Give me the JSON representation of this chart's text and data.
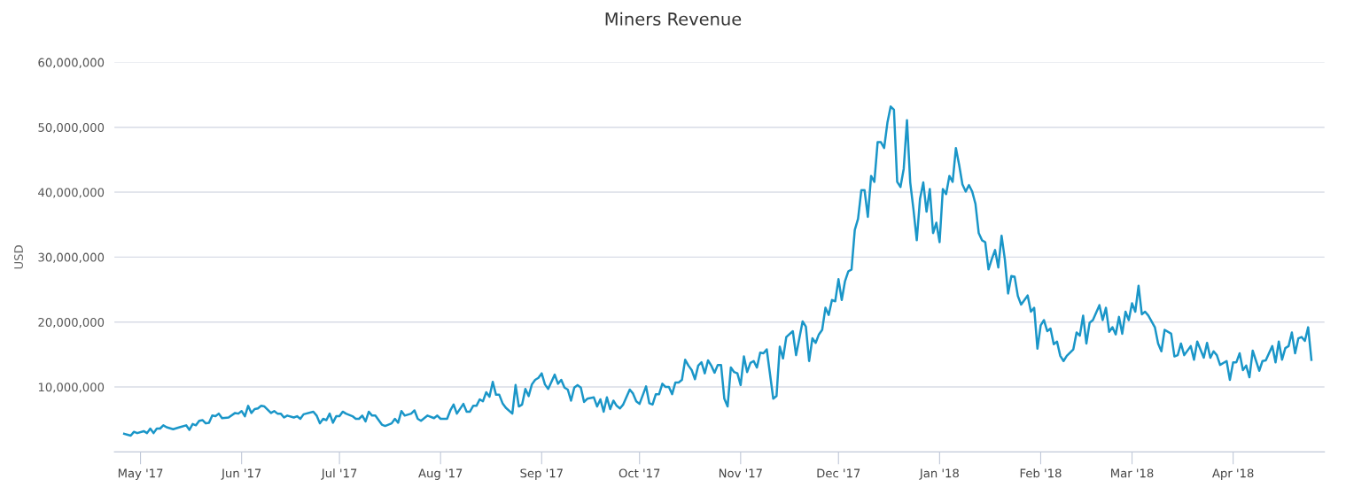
{
  "chart_data": {
    "type": "line",
    "title": "Miners Revenue",
    "ylabel": "USD",
    "xlim": [
      "2017-04-23",
      "2018-04-29"
    ],
    "xticks": [
      {
        "value": "2017-05-01",
        "label": "May '17"
      },
      {
        "value": "2017-06-01",
        "label": "Jun '17"
      },
      {
        "value": "2017-07-01",
        "label": "Jul '17"
      },
      {
        "value": "2017-08-01",
        "label": "Aug '17"
      },
      {
        "value": "2017-09-01",
        "label": "Sep '17"
      },
      {
        "value": "2017-10-01",
        "label": "Oct '17"
      },
      {
        "value": "2017-11-01",
        "label": "Nov '17"
      },
      {
        "value": "2017-12-01",
        "label": "Dec '17"
      },
      {
        "value": "2018-01-01",
        "label": "Jan '18"
      },
      {
        "value": "2018-02-01",
        "label": "Feb '18"
      },
      {
        "value": "2018-03-01",
        "label": "Mar '18"
      },
      {
        "value": "2018-04-01",
        "label": "Apr '18"
      }
    ],
    "ylim": [
      0,
      60000000
    ],
    "yticks": [
      {
        "value": 10000000,
        "label": "10,000,000"
      },
      {
        "value": 20000000,
        "label": "20,000,000"
      },
      {
        "value": 30000000,
        "label": "30,000,000"
      },
      {
        "value": 40000000,
        "label": "40,000,000"
      },
      {
        "value": 50000000,
        "label": "50,000,000"
      },
      {
        "value": 60000000,
        "label": "60,000,000"
      }
    ],
    "grid": "y",
    "marker": "none",
    "line_style": "solid",
    "series": [
      {
        "color": "#1a96c8",
        "x": [
          "2017-04-26",
          "2017-04-28",
          "2017-04-29",
          "2017-04-30",
          "2017-05-02",
          "2017-05-03",
          "2017-05-04",
          "2017-05-05",
          "2017-05-06",
          "2017-05-07",
          "2017-05-08",
          "2017-05-09",
          "2017-05-11",
          "2017-05-13",
          "2017-05-15",
          "2017-05-16",
          "2017-05-17",
          "2017-05-18",
          "2017-05-19",
          "2017-05-20",
          "2017-05-21",
          "2017-05-22",
          "2017-05-23",
          "2017-05-24",
          "2017-05-25",
          "2017-05-26",
          "2017-05-28",
          "2017-05-30",
          "2017-05-31",
          "2017-06-01",
          "2017-06-02",
          "2017-06-03",
          "2017-06-04",
          "2017-06-05",
          "2017-06-06",
          "2017-06-07",
          "2017-06-08",
          "2017-06-10",
          "2017-06-11",
          "2017-06-12",
          "2017-06-13",
          "2017-06-14",
          "2017-06-15",
          "2017-06-17",
          "2017-06-18",
          "2017-06-19",
          "2017-06-20",
          "2017-06-23",
          "2017-06-24",
          "2017-06-25",
          "2017-06-26",
          "2017-06-27",
          "2017-06-28",
          "2017-06-29",
          "2017-06-30",
          "2017-07-01",
          "2017-07-02",
          "2017-07-03",
          "2017-07-05",
          "2017-07-06",
          "2017-07-07",
          "2017-07-08",
          "2017-07-09",
          "2017-07-10",
          "2017-07-11",
          "2017-07-12",
          "2017-07-14",
          "2017-07-15",
          "2017-07-17",
          "2017-07-18",
          "2017-07-19",
          "2017-07-20",
          "2017-07-21",
          "2017-07-23",
          "2017-07-24",
          "2017-07-25",
          "2017-07-26",
          "2017-07-28",
          "2017-07-30",
          "2017-07-31",
          "2017-08-01",
          "2017-08-03",
          "2017-08-04",
          "2017-08-05",
          "2017-08-06",
          "2017-08-08",
          "2017-08-09",
          "2017-08-10",
          "2017-08-11",
          "2017-08-12",
          "2017-08-13",
          "2017-08-14",
          "2017-08-15",
          "2017-08-16",
          "2017-08-17",
          "2017-08-18",
          "2017-08-19",
          "2017-08-20",
          "2017-08-21",
          "2017-08-23",
          "2017-08-24",
          "2017-08-25",
          "2017-08-26",
          "2017-08-27",
          "2017-08-28",
          "2017-08-29",
          "2017-08-30",
          "2017-08-31",
          "2017-09-01",
          "2017-09-02",
          "2017-09-03",
          "2017-09-05",
          "2017-09-06",
          "2017-09-07",
          "2017-09-08",
          "2017-09-09",
          "2017-09-10",
          "2017-09-11",
          "2017-09-12",
          "2017-09-13",
          "2017-09-14",
          "2017-09-15",
          "2017-09-17",
          "2017-09-18",
          "2017-09-19",
          "2017-09-20",
          "2017-09-21",
          "2017-09-22",
          "2017-09-23",
          "2017-09-24",
          "2017-09-25",
          "2017-09-26",
          "2017-09-28",
          "2017-09-29",
          "2017-09-30",
          "2017-10-01",
          "2017-10-03",
          "2017-10-04",
          "2017-10-05",
          "2017-10-06",
          "2017-10-07",
          "2017-10-08",
          "2017-10-09",
          "2017-10-10",
          "2017-10-11",
          "2017-10-12",
          "2017-10-13",
          "2017-10-14",
          "2017-10-15",
          "2017-10-16",
          "2017-10-17",
          "2017-10-18",
          "2017-10-19",
          "2017-10-20",
          "2017-10-21",
          "2017-10-22",
          "2017-10-23",
          "2017-10-24",
          "2017-10-25",
          "2017-10-26",
          "2017-10-27",
          "2017-10-28",
          "2017-10-29",
          "2017-10-30",
          "2017-10-31",
          "2017-11-01",
          "2017-11-02",
          "2017-11-03",
          "2017-11-04",
          "2017-11-05",
          "2017-11-06",
          "2017-11-07",
          "2017-11-08",
          "2017-11-09",
          "2017-11-11",
          "2017-11-12",
          "2017-11-13",
          "2017-11-14",
          "2017-11-15",
          "2017-11-17",
          "2017-11-18",
          "2017-11-19",
          "2017-11-20",
          "2017-11-21",
          "2017-11-22",
          "2017-11-23",
          "2017-11-24",
          "2017-11-25",
          "2017-11-26",
          "2017-11-27",
          "2017-11-28",
          "2017-11-29",
          "2017-11-30",
          "2017-12-01",
          "2017-12-02",
          "2017-12-03",
          "2017-12-04",
          "2017-12-05",
          "2017-12-06",
          "2017-12-07",
          "2017-12-08",
          "2017-12-09",
          "2017-12-10",
          "2017-12-11",
          "2017-12-12",
          "2017-12-13",
          "2017-12-14",
          "2017-12-15",
          "2017-12-16",
          "2017-12-17",
          "2017-12-18",
          "2017-12-19",
          "2017-12-20",
          "2017-12-21",
          "2017-12-22",
          "2017-12-23",
          "2017-12-24",
          "2017-12-25",
          "2017-12-26",
          "2017-12-27",
          "2017-12-28",
          "2017-12-29",
          "2017-12-30",
          "2017-12-31",
          "2018-01-01",
          "2018-01-02",
          "2018-01-03",
          "2018-01-04",
          "2018-01-05",
          "2018-01-06",
          "2018-01-07",
          "2018-01-08",
          "2018-01-09",
          "2018-01-10",
          "2018-01-11",
          "2018-01-12",
          "2018-01-13",
          "2018-01-14",
          "2018-01-15",
          "2018-01-16",
          "2018-01-17",
          "2018-01-18",
          "2018-01-19",
          "2018-01-20",
          "2018-01-21",
          "2018-01-22",
          "2018-01-23",
          "2018-01-24",
          "2018-01-25",
          "2018-01-26",
          "2018-01-28",
          "2018-01-29",
          "2018-01-30",
          "2018-01-31",
          "2018-02-01",
          "2018-02-02",
          "2018-02-03",
          "2018-02-04",
          "2018-02-05",
          "2018-02-06",
          "2018-02-07",
          "2018-02-08",
          "2018-02-09",
          "2018-02-11",
          "2018-02-12",
          "2018-02-13",
          "2018-02-14",
          "2018-02-15",
          "2018-02-16",
          "2018-02-17",
          "2018-02-19",
          "2018-02-20",
          "2018-02-21",
          "2018-02-22",
          "2018-02-23",
          "2018-02-24",
          "2018-02-25",
          "2018-02-26",
          "2018-02-27",
          "2018-02-28",
          "2018-03-01",
          "2018-03-02",
          "2018-03-03",
          "2018-03-04",
          "2018-03-05",
          "2018-03-06",
          "2018-03-08",
          "2018-03-09",
          "2018-03-10",
          "2018-03-11",
          "2018-03-13",
          "2018-03-14",
          "2018-03-15",
          "2018-03-16",
          "2018-03-17",
          "2018-03-19",
          "2018-03-20",
          "2018-03-21",
          "2018-03-23",
          "2018-03-24",
          "2018-03-25",
          "2018-03-26",
          "2018-03-27",
          "2018-03-28",
          "2018-03-30",
          "2018-03-31",
          "2018-04-01",
          "2018-04-02",
          "2018-04-03",
          "2018-04-04",
          "2018-04-05",
          "2018-04-06",
          "2018-04-07",
          "2018-04-09",
          "2018-04-10",
          "2018-04-11",
          "2018-04-13",
          "2018-04-14",
          "2018-04-15",
          "2018-04-16",
          "2018-04-17",
          "2018-04-18",
          "2018-04-19",
          "2018-04-20",
          "2018-04-21",
          "2018-04-22",
          "2018-04-23",
          "2018-04-24",
          "2018-04-25"
        ],
        "values": [
          2800000,
          2500000,
          3100000,
          2900000,
          3200000,
          2900000,
          3600000,
          2900000,
          3600000,
          3600000,
          4100000,
          3800000,
          3500000,
          3800000,
          4100000,
          3400000,
          4300000,
          4100000,
          4800000,
          4900000,
          4400000,
          4500000,
          5600000,
          5500000,
          5900000,
          5200000,
          5300000,
          6000000,
          5900000,
          6300000,
          5500000,
          7100000,
          6000000,
          6600000,
          6700000,
          7100000,
          7000000,
          6000000,
          6300000,
          5900000,
          5900000,
          5300000,
          5600000,
          5300000,
          5500000,
          5100000,
          5800000,
          6200000,
          5600000,
          4400000,
          5100000,
          4900000,
          5900000,
          4500000,
          5500000,
          5500000,
          6200000,
          5900000,
          5500000,
          5100000,
          5100000,
          5600000,
          4700000,
          6200000,
          5600000,
          5600000,
          4200000,
          4000000,
          4400000,
          5100000,
          4500000,
          6300000,
          5600000,
          5900000,
          6400000,
          5100000,
          4800000,
          5600000,
          5200000,
          5600000,
          5100000,
          5100000,
          6400000,
          7300000,
          5900000,
          7400000,
          6200000,
          6200000,
          7100000,
          7100000,
          8100000,
          7800000,
          9200000,
          8500000,
          10800000,
          8800000,
          8800000,
          7500000,
          6800000,
          5900000,
          10300000,
          7000000,
          7300000,
          9700000,
          8600000,
          10400000,
          11100000,
          11400000,
          12100000,
          10400000,
          9700000,
          11900000,
          10500000,
          11100000,
          9900000,
          9600000,
          7900000,
          9900000,
          10300000,
          9900000,
          7700000,
          8200000,
          8400000,
          7000000,
          8100000,
          6200000,
          8400000,
          6600000,
          7900000,
          7100000,
          6700000,
          7300000,
          9600000,
          9000000,
          7800000,
          7400000,
          10100000,
          7500000,
          7300000,
          8900000,
          8900000,
          10500000,
          10000000,
          10000000,
          8900000,
          10700000,
          10700000,
          11100000,
          14200000,
          13300000,
          12600000,
          11200000,
          13300000,
          13800000,
          12100000,
          14100000,
          13300000,
          12200000,
          13400000,
          13400000,
          8200000,
          7000000,
          13000000,
          12300000,
          12100000,
          10300000,
          14700000,
          12300000,
          13700000,
          14000000,
          13000000,
          15300000,
          15200000,
          15800000,
          8200000,
          8600000,
          16200000,
          14400000,
          17700000,
          18600000,
          14900000,
          17500000,
          20100000,
          19300000,
          14000000,
          17500000,
          16800000,
          18100000,
          18800000,
          22200000,
          21100000,
          23400000,
          23200000,
          26600000,
          23400000,
          26300000,
          27800000,
          28100000,
          34200000,
          35900000,
          40300000,
          40300000,
          36200000,
          42500000,
          41600000,
          47700000,
          47700000,
          46800000,
          50700000,
          53200000,
          52700000,
          41600000,
          40800000,
          43600000,
          51100000,
          41500000,
          37300000,
          32600000,
          39000000,
          41500000,
          37000000,
          40500000,
          33700000,
          35300000,
          32300000,
          40500000,
          39700000,
          42500000,
          41600000,
          46800000,
          44200000,
          41200000,
          40100000,
          41100000,
          40100000,
          38200000,
          33700000,
          32600000,
          32300000,
          28100000,
          29700000,
          31100000,
          28400000,
          33300000,
          29700000,
          24400000,
          27100000,
          27000000,
          24000000,
          22700000,
          24100000,
          21600000,
          22200000,
          15900000,
          19500000,
          20300000,
          18600000,
          19000000,
          16600000,
          17000000,
          14800000,
          14000000,
          14800000,
          15800000,
          18400000,
          17900000,
          21000000,
          16700000,
          19900000,
          20300000,
          22600000,
          20300000,
          22200000,
          18500000,
          19200000,
          18100000,
          20800000,
          18200000,
          21600000,
          20300000,
          22900000,
          21600000,
          25600000,
          21200000,
          21600000,
          21000000,
          19200000,
          16700000,
          15500000,
          18800000,
          18200000,
          14700000,
          14900000,
          16700000,
          14900000,
          16300000,
          14200000,
          17000000,
          14500000,
          16800000,
          14500000,
          15500000,
          14900000,
          13400000,
          14000000,
          11100000,
          13800000,
          13800000,
          15200000,
          12600000,
          13300000,
          11500000,
          15600000,
          12500000,
          14000000,
          14100000,
          16300000,
          13800000,
          17000000,
          14200000,
          16000000,
          16300000,
          18400000,
          15200000,
          17500000,
          17700000,
          17100000,
          19200000,
          14200000
        ]
      }
    ]
  }
}
